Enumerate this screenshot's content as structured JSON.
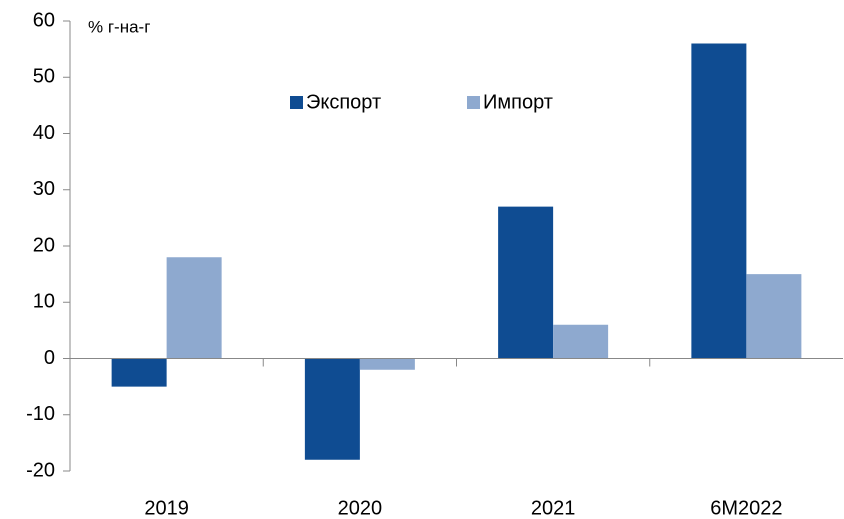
{
  "chart_data": {
    "type": "bar",
    "annotation": "% г-на-г",
    "categories": [
      "2019",
      "2020",
      "2021",
      "6M2022"
    ],
    "series": [
      {
        "name": "Экспорт",
        "color": "#0f4c92",
        "values": [
          -5,
          -18,
          27,
          56
        ]
      },
      {
        "name": "Импорт",
        "color": "#8ea9cf",
        "values": [
          18,
          -2,
          6,
          15
        ]
      }
    ],
    "ylim": [
      -20,
      60
    ],
    "yticks": [
      -20,
      -10,
      0,
      10,
      20,
      30,
      40,
      50,
      60
    ],
    "grid": false,
    "legend": "top"
  }
}
